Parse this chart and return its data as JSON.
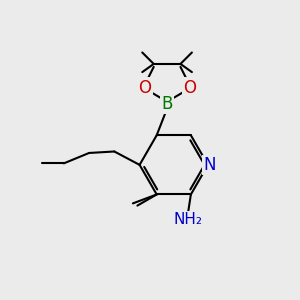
{
  "bg_color": "#ebebeb",
  "bond_color": "#000000",
  "bond_width": 1.5,
  "atom_colors": {
    "N": "#0000cc",
    "O": "#cc0000",
    "B": "#007700",
    "C": "#000000",
    "H": "#333333"
  }
}
